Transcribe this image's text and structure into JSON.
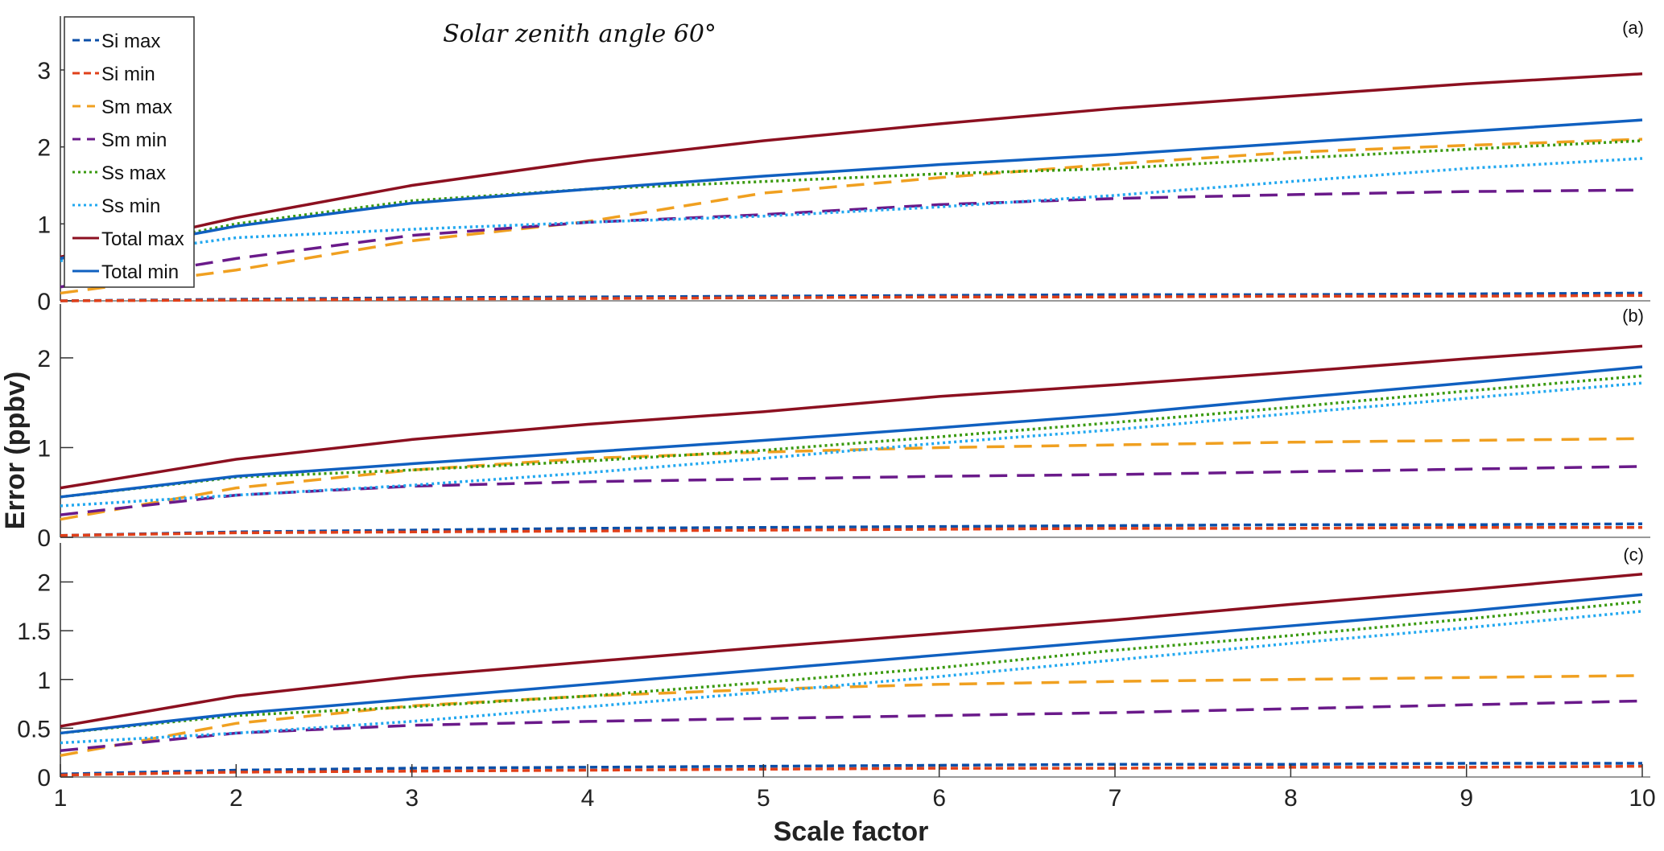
{
  "chart_data": {
    "type": "line",
    "title": "Solar zenith angle 60°",
    "xlabel": "Scale factor",
    "ylabel": "Error (ppbv)",
    "x": [
      1,
      2,
      3,
      4,
      5,
      6,
      7,
      8,
      9,
      10
    ],
    "xlim": [
      1,
      10
    ],
    "x_ticks": [
      "1",
      "2",
      "3",
      "4",
      "5",
      "6",
      "7",
      "8",
      "9",
      "10"
    ],
    "legend_position": "top-left",
    "grid": false,
    "series_styles": [
      {
        "name": "Si max",
        "color": "#0b4fa8",
        "dash": "dashed"
      },
      {
        "name": "Si min",
        "color": "#e0401a",
        "dash": "dashed"
      },
      {
        "name": "Sm max",
        "color": "#f0a020",
        "dash": "long-dashed"
      },
      {
        "name": "Sm min",
        "color": "#6a1a8a",
        "dash": "long-dashed"
      },
      {
        "name": "Ss max",
        "color": "#3a9a10",
        "dash": "dotted"
      },
      {
        "name": "Ss min",
        "color": "#22a8f0",
        "dash": "dotted"
      },
      {
        "name": "Total max",
        "color": "#8c1020",
        "dash": "solid"
      },
      {
        "name": "Total min",
        "color": "#1060c0",
        "dash": "solid"
      }
    ],
    "panels": [
      {
        "label": "(a)",
        "ylim": [
          0,
          3.7
        ],
        "y_ticks": [
          "0",
          "1",
          "2",
          "3"
        ],
        "y_tick_values": [
          0,
          1,
          2,
          3
        ],
        "series": [
          {
            "name": "Si max",
            "values": [
              0.0,
              0.02,
              0.04,
              0.05,
              0.06,
              0.07,
              0.08,
              0.08,
              0.09,
              0.1
            ]
          },
          {
            "name": "Si min",
            "values": [
              0.0,
              0.01,
              0.02,
              0.03,
              0.04,
              0.05,
              0.05,
              0.06,
              0.06,
              0.07
            ]
          },
          {
            "name": "Sm max",
            "values": [
              0.1,
              0.4,
              0.78,
              1.03,
              1.4,
              1.6,
              1.78,
              1.93,
              2.02,
              2.1
            ]
          },
          {
            "name": "Sm min",
            "values": [
              0.18,
              0.55,
              0.85,
              1.02,
              1.12,
              1.25,
              1.33,
              1.38,
              1.42,
              1.44
            ]
          },
          {
            "name": "Ss max",
            "values": [
              0.55,
              1.0,
              1.3,
              1.45,
              1.55,
              1.65,
              1.72,
              1.85,
              1.97,
              2.08
            ]
          },
          {
            "name": "Ss min",
            "values": [
              0.52,
              0.82,
              0.93,
              1.02,
              1.1,
              1.22,
              1.37,
              1.55,
              1.72,
              1.85
            ]
          },
          {
            "name": "Total max",
            "values": [
              0.57,
              1.08,
              1.5,
              1.82,
              2.08,
              2.3,
              2.5,
              2.66,
              2.82,
              2.95
            ]
          },
          {
            "name": "Total min",
            "values": [
              0.55,
              0.97,
              1.27,
              1.45,
              1.62,
              1.77,
              1.9,
              2.05,
              2.2,
              2.35
            ]
          }
        ]
      },
      {
        "label": "(b)",
        "ylim": [
          0,
          2.6
        ],
        "y_ticks": [
          "0",
          "1",
          "2"
        ],
        "y_tick_values": [
          0,
          1,
          2
        ],
        "series": [
          {
            "name": "Si max",
            "values": [
              0.02,
              0.06,
              0.08,
              0.1,
              0.11,
              0.12,
              0.13,
              0.14,
              0.14,
              0.15
            ]
          },
          {
            "name": "Si min",
            "values": [
              0.02,
              0.05,
              0.06,
              0.07,
              0.08,
              0.09,
              0.1,
              0.1,
              0.11,
              0.11
            ]
          },
          {
            "name": "Sm max",
            "values": [
              0.2,
              0.55,
              0.75,
              0.88,
              0.95,
              1.0,
              1.03,
              1.06,
              1.08,
              1.1
            ]
          },
          {
            "name": "Sm min",
            "values": [
              0.25,
              0.47,
              0.57,
              0.62,
              0.65,
              0.68,
              0.7,
              0.73,
              0.76,
              0.79
            ]
          },
          {
            "name": "Ss max",
            "values": [
              0.45,
              0.67,
              0.75,
              0.85,
              0.97,
              1.12,
              1.28,
              1.45,
              1.63,
              1.8
            ]
          },
          {
            "name": "Ss min",
            "values": [
              0.35,
              0.47,
              0.58,
              0.72,
              0.88,
              1.05,
              1.2,
              1.38,
              1.55,
              1.72
            ]
          },
          {
            "name": "Total max",
            "values": [
              0.55,
              0.87,
              1.09,
              1.26,
              1.4,
              1.57,
              1.7,
              1.84,
              1.99,
              2.13
            ]
          },
          {
            "name": "Total min",
            "values": [
              0.45,
              0.68,
              0.82,
              0.95,
              1.08,
              1.22,
              1.37,
              1.55,
              1.72,
              1.9
            ]
          }
        ]
      },
      {
        "label": "(c)",
        "ylim": [
          0,
          2.4
        ],
        "y_ticks": [
          "0",
          "0.5",
          "1",
          "1.5",
          "2"
        ],
        "y_tick_values": [
          0,
          0.5,
          1,
          1.5,
          2
        ],
        "series": [
          {
            "name": "Si max",
            "values": [
              0.03,
              0.07,
              0.09,
              0.1,
              0.11,
              0.12,
              0.13,
              0.13,
              0.14,
              0.14
            ]
          },
          {
            "name": "Si min",
            "values": [
              0.02,
              0.05,
              0.06,
              0.07,
              0.08,
              0.09,
              0.09,
              0.1,
              0.1,
              0.11
            ]
          },
          {
            "name": "Sm max",
            "values": [
              0.22,
              0.55,
              0.73,
              0.83,
              0.9,
              0.95,
              0.98,
              1.0,
              1.02,
              1.04
            ]
          },
          {
            "name": "Sm min",
            "values": [
              0.27,
              0.45,
              0.53,
              0.57,
              0.6,
              0.63,
              0.66,
              0.7,
              0.74,
              0.78
            ]
          },
          {
            "name": "Ss max",
            "values": [
              0.45,
              0.63,
              0.72,
              0.83,
              0.97,
              1.12,
              1.3,
              1.45,
              1.62,
              1.8
            ]
          },
          {
            "name": "Ss min",
            "values": [
              0.35,
              0.45,
              0.57,
              0.72,
              0.87,
              1.03,
              1.2,
              1.37,
              1.53,
              1.7
            ]
          },
          {
            "name": "Total max",
            "values": [
              0.52,
              0.83,
              1.03,
              1.18,
              1.33,
              1.47,
              1.61,
              1.77,
              1.92,
              2.08
            ]
          },
          {
            "name": "Total min",
            "values": [
              0.45,
              0.65,
              0.8,
              0.95,
              1.1,
              1.25,
              1.4,
              1.55,
              1.7,
              1.87
            ]
          }
        ]
      }
    ]
  }
}
